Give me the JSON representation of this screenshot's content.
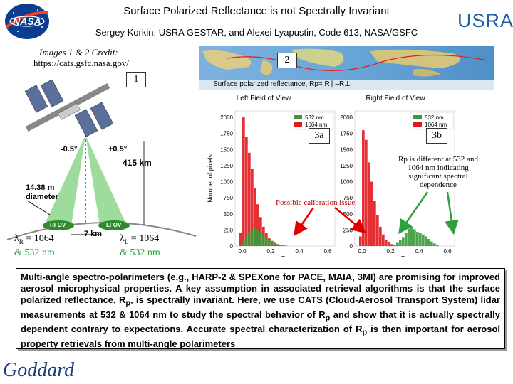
{
  "header": {
    "title": "Surface Polarized Reflectance is not Spectrally Invariant",
    "authors": "Sergey Korkin, USRA GESTAR, and Alexei Lyapustin, Code 613, NASA/GSFC",
    "nasa_logo_text": "NASA",
    "usra_logo_text": "USRA"
  },
  "credit": {
    "label": "Images 1 & 2 Credit:",
    "url": "https://cats.gsfc.nasa.gov/"
  },
  "tags": {
    "img1": "1",
    "img2": "2",
    "fig3a": "3a",
    "fig3b": "3b"
  },
  "satellite_diagram": {
    "left_angle": "-0.5°",
    "right_angle": "+0.5°",
    "altitude": "415 km",
    "diameter_value": "14.38 m",
    "diameter_label": "diameter",
    "separation": "7 km",
    "rfov": "RFOV",
    "lfov": "LFOV"
  },
  "lambda_right": {
    "symbol": "λ",
    "sub": "R",
    "first": "= 1064",
    "second": "& 532 nm",
    "second_color": "#2e9e3e"
  },
  "lambda_left": {
    "symbol": "λ",
    "sub": "L",
    "first": "= 1064",
    "second": "& 532 nm",
    "second_color": "#2e9e3e"
  },
  "map_caption": "Surface polarized reflectance, Rp= R∥ –R⊥",
  "annotations": {
    "calibration": "Possible calibration issue",
    "rp_note": "Rp is different at 532 and 1064 nm indicating significant spectral dependence"
  },
  "colors": {
    "green": "#3a9a3a",
    "red": "#e0191f",
    "arrow_green": "#2e9e3e",
    "arrow_red": "#e00000"
  },
  "chart_data": [
    {
      "type": "bar",
      "title": "Left Field of View",
      "xlabel": "Rp",
      "ylabel": "Number of pixels",
      "ylim": [
        0,
        2100
      ],
      "yticks": [
        0,
        250,
        500,
        750,
        1000,
        1250,
        1500,
        1750,
        2000
      ],
      "xticks": [
        0.0,
        0.2,
        0.4,
        0.6
      ],
      "xlim": [
        -0.05,
        0.65
      ],
      "legend": [
        "532 nm",
        "1064 nm"
      ],
      "bin_width": 0.02,
      "series": [
        {
          "name": "1064 nm",
          "color": "#e0191f",
          "x": [
            -0.01,
            0.01,
            0.03,
            0.05,
            0.07,
            0.09,
            0.11,
            0.13,
            0.15,
            0.17,
            0.19,
            0.21,
            0.23,
            0.25,
            0.27,
            0.29,
            0.31
          ],
          "values": [
            200,
            2000,
            1700,
            1450,
            1200,
            900,
            650,
            450,
            300,
            200,
            120,
            80,
            50,
            30,
            20,
            10,
            5
          ]
        },
        {
          "name": "532 nm",
          "color": "#3a9a3a",
          "x": [
            0.01,
            0.03,
            0.05,
            0.07,
            0.09,
            0.11,
            0.13,
            0.15,
            0.17,
            0.19,
            0.21,
            0.23,
            0.25,
            0.27,
            0.29
          ],
          "values": [
            80,
            150,
            220,
            260,
            280,
            260,
            220,
            180,
            140,
            100,
            70,
            45,
            25,
            15,
            8
          ]
        }
      ]
    },
    {
      "type": "bar",
      "title": "Right Field of View",
      "xlabel": "Rp",
      "ylabel": "",
      "ylim": [
        0,
        2100
      ],
      "yticks": [
        0,
        250,
        500,
        750,
        1000,
        1250,
        1500,
        1750,
        2000
      ],
      "xticks": [
        0.0,
        0.2,
        0.4,
        0.6
      ],
      "xlim": [
        -0.05,
        0.65
      ],
      "legend": [
        "532 nm",
        "1064 nm"
      ],
      "bin_width": 0.02,
      "series": [
        {
          "name": "1064 nm",
          "color": "#e0191f",
          "x": [
            -0.01,
            0.01,
            0.03,
            0.05,
            0.07,
            0.09,
            0.11,
            0.13,
            0.15,
            0.17,
            0.19,
            0.21,
            0.23,
            0.25
          ],
          "values": [
            150,
            1800,
            1650,
            1300,
            1000,
            700,
            480,
            300,
            180,
            100,
            60,
            30,
            15,
            8
          ]
        },
        {
          "name": "532 nm",
          "color": "#3a9a3a",
          "x": [
            0.23,
            0.25,
            0.27,
            0.29,
            0.31,
            0.33,
            0.35,
            0.37,
            0.39,
            0.41,
            0.43,
            0.45,
            0.47,
            0.49,
            0.51,
            0.53
          ],
          "values": [
            20,
            50,
            90,
            140,
            200,
            270,
            300,
            260,
            220,
            200,
            180,
            150,
            110,
            70,
            40,
            20
          ]
        }
      ]
    }
  ],
  "abstract": {
    "line1": "Multi-angle spectro-polarimeters (e.g., HARP-2 & SPEXone for PACE, MAIA, 3MI) are promising for improved aerosol microphysical properties. A key assumption in associated retrieval algorithms is that the surface polarized reflectance, R",
    "sub1": "p",
    "line2": ", is spectrally invariant. Here, we use CATS (Cloud-Aerosol Transport System) lidar measurements at 532 & 1064 nm to study the spectral behavior of R",
    "sub2": "p",
    "line3": " and show that it is actually spectrally dependent contrary to expectations.  Accurate spectral characterization of R",
    "sub3": "p",
    "line4": " is then important for aerosol property retrievals from multi-angle polarimeters"
  },
  "footer": {
    "goddard": "Goddard"
  }
}
